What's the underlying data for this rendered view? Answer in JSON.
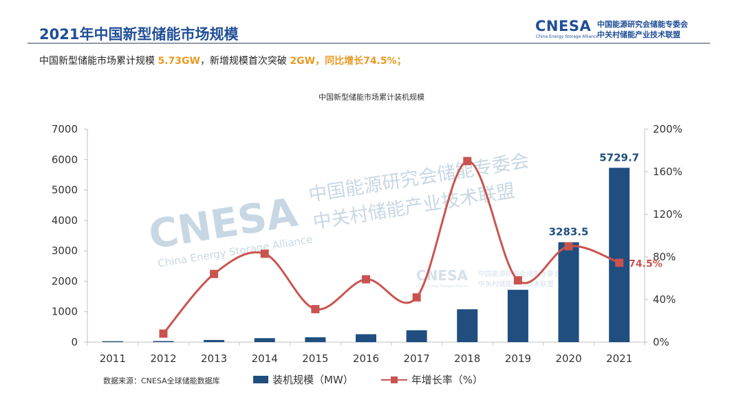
{
  "header": {
    "title": "2021年中国新型储能市场规模",
    "logo_main": "CNESA",
    "logo_sub": "China Energy Storage Alliance",
    "logo_cn_line1": "中国能源研究会储能专委会",
    "logo_cn_line2": "中关村储能产业技术联盟"
  },
  "headline": {
    "part1": "中国新型储能市场累计规模 ",
    "value1": "5.73GW",
    "part2": "，新增规模首次突破 ",
    "value2": "2GW",
    "part3": "，同比增长74.5%；"
  },
  "footer": {
    "source": "数据来源：CNESA全球储能数据库"
  },
  "watermark": {
    "logo": "CNESA",
    "sub": "China Energy Storage Alliance",
    "cn_line1": "中国能源研究会储能专委会",
    "cn_line2": "中关村储能产业技术联盟"
  },
  "colors": {
    "bar": "#1f4e7f",
    "line": "#c9544f",
    "title": "#1f4e96",
    "highlight": "#e89a22"
  },
  "chart_data": {
    "type": "bar",
    "title": "中国新型储能市场累计装机规模",
    "categories": [
      "2011",
      "2012",
      "2013",
      "2014",
      "2015",
      "2016",
      "2017",
      "2018",
      "2019",
      "2020",
      "2021"
    ],
    "series": [
      {
        "name": "装机规模（MW）",
        "type": "bar",
        "axis": "left",
        "values": [
          30,
          35,
          70,
          130,
          160,
          260,
          390,
          1080,
          1720,
          3283.5,
          5729.7
        ]
      },
      {
        "name": "年增长率（%）",
        "type": "line",
        "axis": "right",
        "values": [
          null,
          8,
          64,
          83,
          31,
          59,
          42,
          170,
          58,
          90,
          74.5
        ]
      }
    ],
    "data_labels": [
      {
        "category": "2020",
        "series": "装机规模（MW）",
        "text": "3283.5"
      },
      {
        "category": "2021",
        "series": "装机规模（MW）",
        "text": "5729.7"
      },
      {
        "category": "2021",
        "series": "年增长率（%）",
        "text": "74.5%"
      }
    ],
    "left_axis": {
      "min": 0,
      "max": 7000,
      "ticks": [
        "0",
        "1000",
        "2000",
        "3000",
        "4000",
        "5000",
        "6000",
        "7000"
      ]
    },
    "right_axis": {
      "min": 0,
      "max": 200,
      "ticks": [
        "0%",
        "40%",
        "80%",
        "120%",
        "160%",
        "200%"
      ]
    },
    "grid": false,
    "legend_position": "bottom"
  }
}
